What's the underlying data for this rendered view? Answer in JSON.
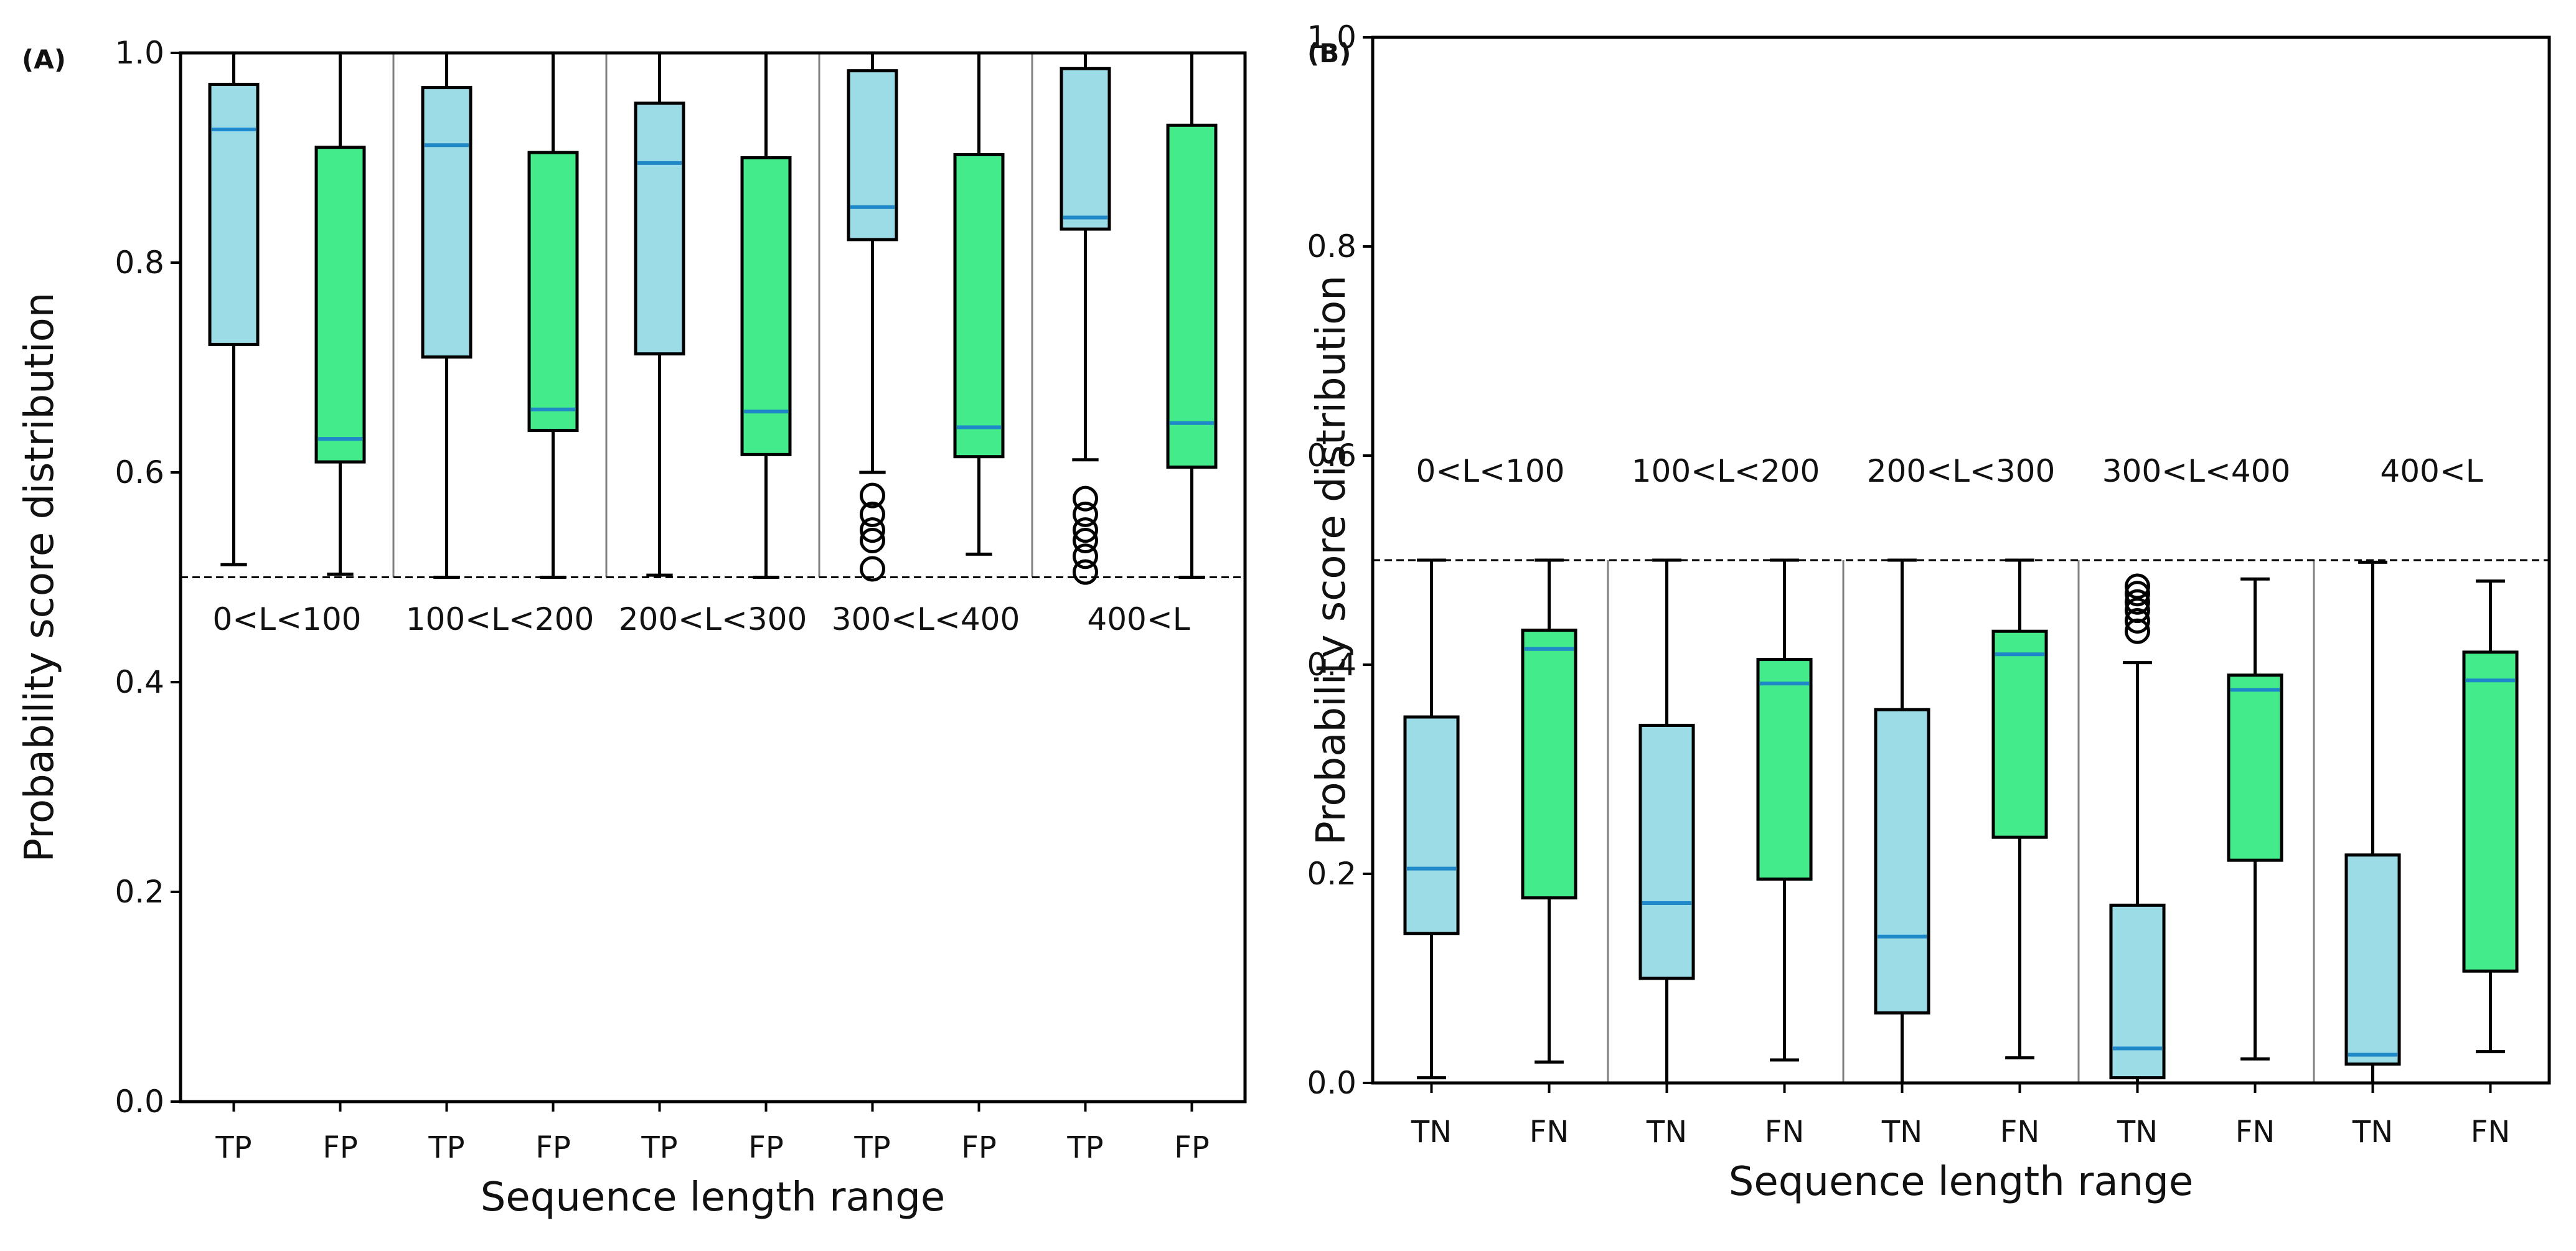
{
  "colors": {
    "tp_tn_box": "#9CDCE6",
    "fp_fn_box": "#44EB8A",
    "median": "#1E88C8",
    "frame": "#000000",
    "divider": "#808080"
  },
  "chart_data": [
    {
      "type": "box",
      "panel_label": "(A)",
      "xlabel": "Sequence length range",
      "ylabel": "Probability score distribution",
      "ylim": [
        0,
        1
      ],
      "yticks": [
        "0.0",
        "0.2",
        "0.4",
        "0.6",
        "0.8",
        "1.0"
      ],
      "threshold": 0.5,
      "range_label_y": 0.45,
      "groups": [
        "0<L<100",
        "100<L<200",
        "200<L<300",
        "300<L<400",
        "400<L"
      ],
      "categories": [
        "TP",
        "FP",
        "TP",
        "FP",
        "TP",
        "FP",
        "TP",
        "FP",
        "TP",
        "FP"
      ],
      "boxes": [
        {
          "label": "TP",
          "min": 0.512,
          "q1": 0.722,
          "median": 0.927,
          "q3": 0.97,
          "max": 1.0,
          "outliers": []
        },
        {
          "label": "FP",
          "min": 0.503,
          "q1": 0.61,
          "median": 0.632,
          "q3": 0.91,
          "max": 1.0,
          "outliers": []
        },
        {
          "label": "TP",
          "min": 0.5,
          "q1": 0.71,
          "median": 0.912,
          "q3": 0.967,
          "max": 1.0,
          "outliers": []
        },
        {
          "label": "FP",
          "min": 0.5,
          "q1": 0.64,
          "median": 0.66,
          "q3": 0.905,
          "max": 1.0,
          "outliers": []
        },
        {
          "label": "TP",
          "min": 0.502,
          "q1": 0.713,
          "median": 0.895,
          "q3": 0.952,
          "max": 1.0,
          "outliers": []
        },
        {
          "label": "FP",
          "min": 0.5,
          "q1": 0.617,
          "median": 0.658,
          "q3": 0.9,
          "max": 1.0,
          "outliers": []
        },
        {
          "label": "TP",
          "min": 0.6,
          "q1": 0.822,
          "median": 0.853,
          "q3": 0.983,
          "max": 1.0,
          "outliers": [
            0.508,
            0.535,
            0.545,
            0.56,
            0.578
          ]
        },
        {
          "label": "FP",
          "min": 0.522,
          "q1": 0.615,
          "median": 0.643,
          "q3": 0.903,
          "max": 1.0,
          "outliers": []
        },
        {
          "label": "TP",
          "min": 0.612,
          "q1": 0.832,
          "median": 0.843,
          "q3": 0.985,
          "max": 1.0,
          "outliers": [
            0.505,
            0.52,
            0.535,
            0.545,
            0.56,
            0.575
          ]
        },
        {
          "label": "FP",
          "min": 0.5,
          "q1": 0.605,
          "median": 0.647,
          "q3": 0.931,
          "max": 1.0,
          "outliers": []
        }
      ]
    },
    {
      "type": "box",
      "panel_label": "(B)",
      "xlabel": "Sequence length range",
      "ylabel": "Probability score distribution",
      "ylim": [
        0,
        1
      ],
      "yticks": [
        "0.0",
        "0.2",
        "0.4",
        "0.6",
        "0.8",
        "1.0"
      ],
      "threshold": 0.5,
      "range_label_y": 0.575,
      "groups": [
        "0<L<100",
        "100<L<200",
        "200<L<300",
        "300<L<400",
        "400<L"
      ],
      "categories": [
        "TN",
        "FN",
        "TN",
        "FN",
        "TN",
        "FN",
        "TN",
        "FN",
        "TN",
        "FN"
      ],
      "boxes": [
        {
          "label": "TN",
          "min": 0.005,
          "q1": 0.143,
          "median": 0.205,
          "q3": 0.35,
          "max": 0.5,
          "outliers": []
        },
        {
          "label": "FN",
          "min": 0.02,
          "q1": 0.177,
          "median": 0.415,
          "q3": 0.433,
          "max": 0.5,
          "outliers": []
        },
        {
          "label": "TN",
          "min": 0.0,
          "q1": 0.1,
          "median": 0.172,
          "q3": 0.342,
          "max": 0.5,
          "outliers": []
        },
        {
          "label": "FN",
          "min": 0.022,
          "q1": 0.195,
          "median": 0.382,
          "q3": 0.405,
          "max": 0.5,
          "outliers": []
        },
        {
          "label": "TN",
          "min": 0.0,
          "q1": 0.067,
          "median": 0.14,
          "q3": 0.357,
          "max": 0.5,
          "outliers": []
        },
        {
          "label": "FN",
          "min": 0.024,
          "q1": 0.235,
          "median": 0.41,
          "q3": 0.432,
          "max": 0.5,
          "outliers": []
        },
        {
          "label": "TN",
          "min": 0.0,
          "q1": 0.005,
          "median": 0.033,
          "q3": 0.17,
          "max": 0.402,
          "outliers": [
            0.432,
            0.442,
            0.452,
            0.46,
            0.468,
            0.475
          ]
        },
        {
          "label": "FN",
          "min": 0.023,
          "q1": 0.213,
          "median": 0.376,
          "q3": 0.39,
          "max": 0.482,
          "outliers": []
        },
        {
          "label": "TN",
          "min": 0.0,
          "q1": 0.018,
          "median": 0.027,
          "q3": 0.218,
          "max": 0.498,
          "outliers": []
        },
        {
          "label": "FN",
          "min": 0.03,
          "q1": 0.107,
          "median": 0.385,
          "q3": 0.412,
          "max": 0.48,
          "outliers": []
        }
      ]
    }
  ]
}
